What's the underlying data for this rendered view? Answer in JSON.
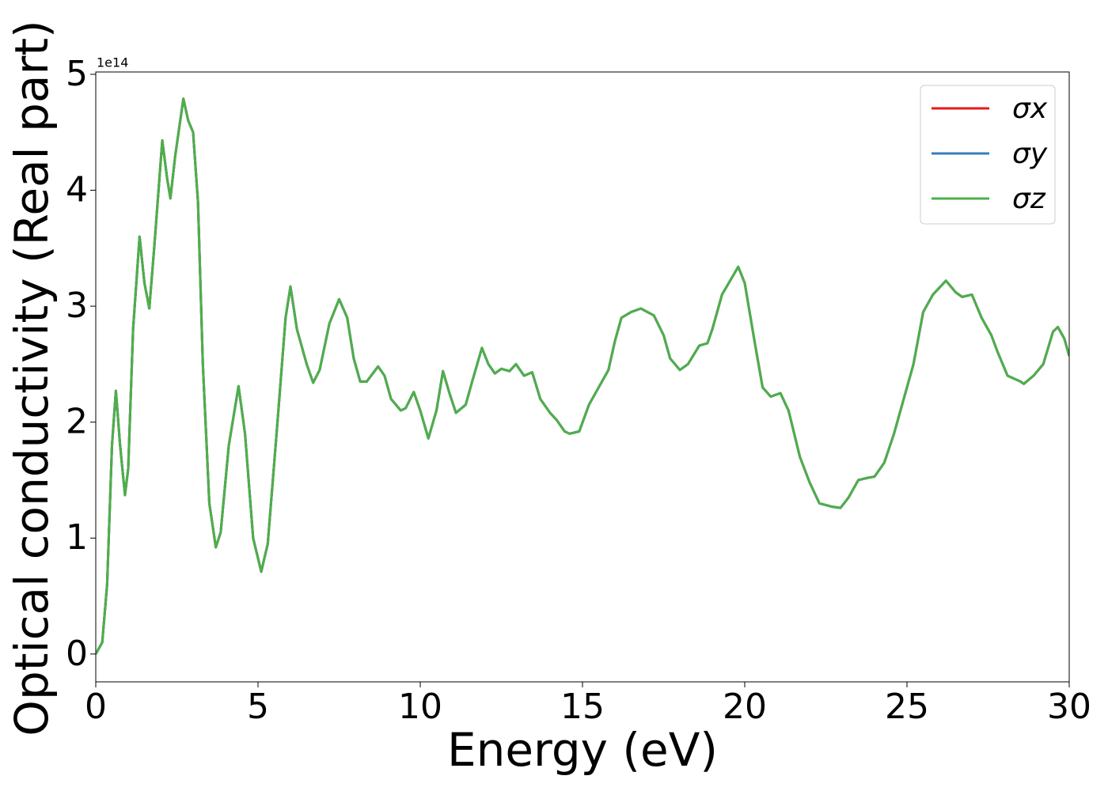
{
  "chart_data": {
    "type": "line",
    "x_label": "Energy (eV)",
    "y_label": "Optical conductivity (Real part)",
    "y_offset_label": "1e14",
    "xlim": [
      0,
      30
    ],
    "ylim": [
      -0.24,
      5.02
    ],
    "xticks": [
      0,
      5,
      10,
      15,
      20,
      25,
      30
    ],
    "yticks": [
      0,
      1,
      2,
      3,
      4,
      5
    ],
    "legend": "upper right",
    "x": [
      0,
      0.2,
      0.35,
      0.5,
      0.62,
      0.75,
      0.9,
      1.0,
      1.15,
      1.35,
      1.5,
      1.65,
      1.8,
      2.05,
      2.2,
      2.3,
      2.45,
      2.7,
      2.85,
      3.0,
      3.15,
      3.3,
      3.5,
      3.7,
      3.85,
      4.1,
      4.4,
      4.6,
      4.85,
      5.1,
      5.3,
      5.6,
      5.85,
      6.0,
      6.2,
      6.5,
      6.7,
      6.9,
      7.2,
      7.5,
      7.75,
      7.95,
      8.15,
      8.35,
      8.7,
      8.9,
      9.1,
      9.4,
      9.55,
      9.8,
      10.0,
      10.25,
      10.5,
      10.7,
      10.9,
      11.1,
      11.4,
      11.6,
      11.9,
      12.1,
      12.3,
      12.5,
      12.75,
      12.95,
      13.2,
      13.45,
      13.7,
      14.0,
      14.2,
      14.45,
      14.6,
      14.9,
      15.2,
      15.5,
      15.8,
      16.0,
      16.2,
      16.5,
      16.8,
      17.2,
      17.5,
      17.7,
      18.0,
      18.25,
      18.6,
      18.85,
      19.0,
      19.3,
      19.55,
      19.8,
      20.0,
      20.3,
      20.55,
      20.8,
      21.1,
      21.35,
      21.7,
      22.0,
      22.3,
      22.7,
      22.95,
      23.2,
      23.5,
      23.8,
      24.0,
      24.3,
      24.6,
      24.9,
      25.2,
      25.5,
      25.8,
      26.2,
      26.5,
      26.7,
      27.0,
      27.3,
      27.6,
      27.8,
      28.1,
      28.5,
      28.6,
      28.9,
      29.2,
      29.5,
      29.65,
      29.85,
      30.0
    ],
    "series": [
      {
        "name": "σx",
        "color": "#e41a1c",
        "values": [
          0,
          0.1,
          0.6,
          1.8,
          2.27,
          1.8,
          1.37,
          1.6,
          2.8,
          3.6,
          3.2,
          2.98,
          3.5,
          4.43,
          4.1,
          3.93,
          4.3,
          4.79,
          4.6,
          4.5,
          3.9,
          2.5,
          1.3,
          0.92,
          1.05,
          1.8,
          2.31,
          1.9,
          1.0,
          0.71,
          0.95,
          2.0,
          2.9,
          3.17,
          2.8,
          2.5,
          2.34,
          2.45,
          2.85,
          3.06,
          2.9,
          2.55,
          2.35,
          2.35,
          2.48,
          2.4,
          2.2,
          2.1,
          2.12,
          2.26,
          2.1,
          1.86,
          2.1,
          2.44,
          2.25,
          2.08,
          2.15,
          2.35,
          2.64,
          2.5,
          2.42,
          2.46,
          2.44,
          2.5,
          2.4,
          2.43,
          2.2,
          2.08,
          2.02,
          1.92,
          1.9,
          1.92,
          2.15,
          2.3,
          2.45,
          2.7,
          2.9,
          2.95,
          2.98,
          2.92,
          2.75,
          2.55,
          2.45,
          2.5,
          2.66,
          2.68,
          2.8,
          3.1,
          3.22,
          3.34,
          3.2,
          2.7,
          2.3,
          2.22,
          2.25,
          2.1,
          1.7,
          1.48,
          1.3,
          1.27,
          1.26,
          1.35,
          1.5,
          1.52,
          1.53,
          1.65,
          1.9,
          2.2,
          2.5,
          2.95,
          3.1,
          3.22,
          3.12,
          3.08,
          3.1,
          2.9,
          2.75,
          2.6,
          2.4,
          2.35,
          2.33,
          2.4,
          2.5,
          2.78,
          2.82,
          2.72,
          2.57
        ]
      },
      {
        "name": "σy",
        "color": "#377eb8",
        "values": [
          0,
          0.1,
          0.6,
          1.8,
          2.27,
          1.8,
          1.37,
          1.6,
          2.8,
          3.6,
          3.2,
          2.98,
          3.5,
          4.43,
          4.1,
          3.93,
          4.3,
          4.79,
          4.6,
          4.5,
          3.9,
          2.5,
          1.3,
          0.92,
          1.05,
          1.8,
          2.31,
          1.9,
          1.0,
          0.71,
          0.95,
          2.0,
          2.9,
          3.17,
          2.8,
          2.5,
          2.34,
          2.45,
          2.85,
          3.06,
          2.9,
          2.55,
          2.35,
          2.35,
          2.48,
          2.4,
          2.2,
          2.1,
          2.12,
          2.26,
          2.1,
          1.86,
          2.1,
          2.44,
          2.25,
          2.08,
          2.15,
          2.35,
          2.64,
          2.5,
          2.42,
          2.46,
          2.44,
          2.5,
          2.4,
          2.43,
          2.2,
          2.08,
          2.02,
          1.92,
          1.9,
          1.92,
          2.15,
          2.3,
          2.45,
          2.7,
          2.9,
          2.95,
          2.98,
          2.92,
          2.75,
          2.55,
          2.45,
          2.5,
          2.66,
          2.68,
          2.8,
          3.1,
          3.22,
          3.34,
          3.2,
          2.7,
          2.3,
          2.22,
          2.25,
          2.1,
          1.7,
          1.48,
          1.3,
          1.27,
          1.26,
          1.35,
          1.5,
          1.52,
          1.53,
          1.65,
          1.9,
          2.2,
          2.5,
          2.95,
          3.1,
          3.22,
          3.12,
          3.08,
          3.1,
          2.9,
          2.75,
          2.6,
          2.4,
          2.35,
          2.33,
          2.4,
          2.5,
          2.78,
          2.82,
          2.72,
          2.57
        ]
      },
      {
        "name": "σz",
        "color": "#4daf4a",
        "values": [
          0,
          0.1,
          0.6,
          1.8,
          2.27,
          1.8,
          1.37,
          1.6,
          2.8,
          3.6,
          3.2,
          2.98,
          3.5,
          4.43,
          4.1,
          3.93,
          4.3,
          4.79,
          4.6,
          4.5,
          3.9,
          2.5,
          1.3,
          0.92,
          1.05,
          1.8,
          2.31,
          1.9,
          1.0,
          0.71,
          0.95,
          2.0,
          2.9,
          3.17,
          2.8,
          2.5,
          2.34,
          2.45,
          2.85,
          3.06,
          2.9,
          2.55,
          2.35,
          2.35,
          2.48,
          2.4,
          2.2,
          2.1,
          2.12,
          2.26,
          2.1,
          1.86,
          2.1,
          2.44,
          2.25,
          2.08,
          2.15,
          2.35,
          2.64,
          2.5,
          2.42,
          2.46,
          2.44,
          2.5,
          2.4,
          2.43,
          2.2,
          2.08,
          2.02,
          1.92,
          1.9,
          1.92,
          2.15,
          2.3,
          2.45,
          2.7,
          2.9,
          2.95,
          2.98,
          2.92,
          2.75,
          2.55,
          2.45,
          2.5,
          2.66,
          2.68,
          2.8,
          3.1,
          3.22,
          3.34,
          3.2,
          2.7,
          2.3,
          2.22,
          2.25,
          2.1,
          1.7,
          1.48,
          1.3,
          1.27,
          1.26,
          1.35,
          1.5,
          1.52,
          1.53,
          1.65,
          1.9,
          2.2,
          2.5,
          2.95,
          3.1,
          3.22,
          3.12,
          3.08,
          3.1,
          2.9,
          2.75,
          2.6,
          2.4,
          2.35,
          2.33,
          2.4,
          2.5,
          2.78,
          2.82,
          2.72,
          2.57
        ]
      }
    ]
  }
}
